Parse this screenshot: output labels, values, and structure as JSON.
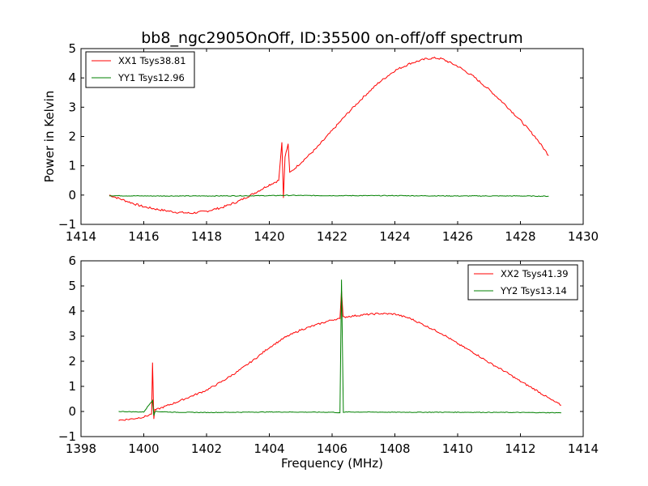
{
  "title": "bb8_ngc2905OnOff, ID:35500 on-off/off spectrum",
  "colors": {
    "xx": "#ff0000",
    "yy": "#008000"
  },
  "chart_data": [
    {
      "type": "line",
      "title": "bb8_ngc2905OnOff, ID:35500 on-off/off spectrum",
      "xlabel": "",
      "ylabel": "Power in Kelvin",
      "xlim": [
        1414,
        1430
      ],
      "ylim": [
        -1,
        5
      ],
      "xticks": [
        1414,
        1416,
        1418,
        1420,
        1422,
        1424,
        1426,
        1428,
        1430
      ],
      "yticks": [
        -1,
        0,
        1,
        2,
        3,
        4,
        5
      ],
      "legend_position": "upper-left",
      "grid": false,
      "series": [
        {
          "name": "XX1 Tsys38.81",
          "color": "#ff0000",
          "x": [
            1414.9,
            1415.3,
            1415.7,
            1416.0,
            1416.5,
            1417.0,
            1417.5,
            1418.0,
            1418.5,
            1419.0,
            1419.5,
            1420.0,
            1420.3,
            1420.4,
            1420.45,
            1420.5,
            1420.6,
            1420.65,
            1420.7,
            1421.0,
            1421.5,
            1422.0,
            1422.5,
            1423.0,
            1423.5,
            1424.0,
            1424.5,
            1425.0,
            1425.3,
            1425.5,
            1426.0,
            1426.5,
            1427.0,
            1427.5,
            1428.0,
            1428.5,
            1428.9
          ],
          "y": [
            0.0,
            -0.15,
            -0.3,
            -0.4,
            -0.5,
            -0.58,
            -0.62,
            -0.55,
            -0.42,
            -0.22,
            0.05,
            0.35,
            0.5,
            1.8,
            -0.1,
            1.3,
            1.75,
            0.75,
            0.8,
            1.1,
            1.6,
            2.2,
            2.8,
            3.35,
            3.85,
            4.25,
            4.5,
            4.65,
            4.68,
            4.65,
            4.4,
            4.05,
            3.6,
            3.1,
            2.55,
            1.95,
            1.35
          ]
        },
        {
          "name": "YY1 Tsys12.96",
          "color": "#008000",
          "x": [
            1414.9,
            1416.0,
            1418.0,
            1420.0,
            1420.5,
            1422.0,
            1424.0,
            1426.0,
            1428.0,
            1428.9
          ],
          "y": [
            -0.02,
            -0.03,
            -0.03,
            -0.02,
            -0.01,
            -0.02,
            -0.02,
            -0.03,
            -0.03,
            -0.04
          ]
        }
      ]
    },
    {
      "type": "line",
      "title": "",
      "xlabel": "Frequency (MHz)",
      "ylabel": "",
      "xlim": [
        1398,
        1414
      ],
      "ylim": [
        -1,
        6
      ],
      "xticks": [
        1398,
        1400,
        1402,
        1404,
        1406,
        1408,
        1410,
        1412,
        1414
      ],
      "yticks": [
        -1,
        0,
        1,
        2,
        3,
        4,
        5,
        6
      ],
      "legend_position": "upper-right",
      "grid": false,
      "series": [
        {
          "name": "XX2 Tsys41.39",
          "color": "#ff0000",
          "x": [
            1399.2,
            1399.6,
            1400.0,
            1400.25,
            1400.28,
            1400.32,
            1400.35,
            1401.0,
            1401.5,
            1402.0,
            1402.5,
            1403.0,
            1403.5,
            1404.0,
            1404.5,
            1405.0,
            1405.5,
            1406.0,
            1406.25,
            1406.3,
            1406.35,
            1406.5,
            1407.0,
            1407.5,
            1408.0,
            1408.5,
            1409.0,
            1409.5,
            1410.0,
            1410.5,
            1411.0,
            1411.5,
            1412.0,
            1412.5,
            1413.0,
            1413.3
          ],
          "y": [
            -0.35,
            -0.3,
            -0.22,
            -0.1,
            1.95,
            -0.28,
            0.05,
            0.35,
            0.6,
            0.85,
            1.2,
            1.6,
            2.05,
            2.55,
            2.95,
            3.25,
            3.45,
            3.65,
            3.7,
            4.8,
            3.75,
            3.78,
            3.85,
            3.9,
            3.88,
            3.7,
            3.4,
            3.1,
            2.7,
            2.35,
            1.95,
            1.6,
            1.2,
            0.85,
            0.45,
            0.25
          ]
        },
        {
          "name": "YY2 Tsys13.14",
          "color": "#008000",
          "x": [
            1399.2,
            1400.0,
            1400.28,
            1400.32,
            1400.36,
            1401.0,
            1402.0,
            1404.0,
            1406.0,
            1406.25,
            1406.3,
            1406.36,
            1406.45,
            1408.0,
            1410.0,
            1412.0,
            1413.3
          ],
          "y": [
            0.0,
            -0.02,
            0.45,
            -0.15,
            0.0,
            -0.03,
            -0.04,
            -0.02,
            -0.03,
            -0.05,
            5.25,
            -0.05,
            -0.02,
            -0.03,
            -0.03,
            -0.04,
            -0.05
          ]
        }
      ]
    }
  ]
}
